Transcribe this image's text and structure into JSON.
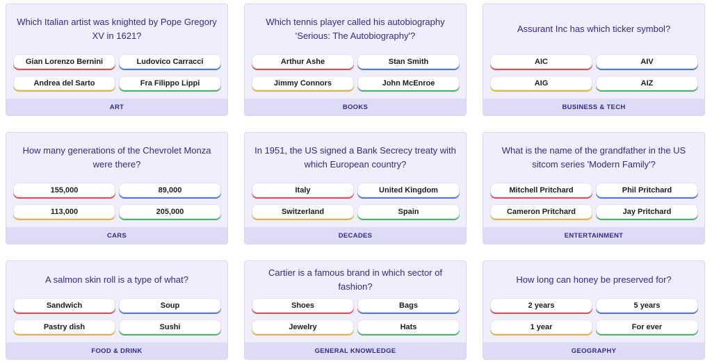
{
  "cards": [
    {
      "question": "Which Italian artist was knighted by Pope Gregory XV in 1621?",
      "answers": [
        "Gian Lorenzo Bernini",
        "Ludovico Carracci",
        "Andrea del Sarto",
        "Fra Filippo Lippi"
      ],
      "category": "ART"
    },
    {
      "question": "Which tennis player called his autobiography 'Serious: The Autobiography'?",
      "answers": [
        "Arthur Ashe",
        "Stan Smith",
        "Jimmy Connors",
        "John McEnroe"
      ],
      "category": "BOOKS"
    },
    {
      "question": "Assurant Inc has which ticker symbol?",
      "answers": [
        "AIC",
        "AIV",
        "AIG",
        "AIZ"
      ],
      "category": "BUSINESS & TECH"
    },
    {
      "question": "How many generations of the Chevrolet Monza were there?",
      "answers": [
        "155,000",
        "89,000",
        "113,000",
        "205,000"
      ],
      "category": "CARS"
    },
    {
      "question": "In 1951, the US signed a Bank Secrecy treaty with which European country?",
      "answers": [
        "Italy",
        "United Kingdom",
        "Switzerland",
        "Spain"
      ],
      "category": "DECADES"
    },
    {
      "question": "What is the name of the grandfather in the US sitcom series 'Modern Family'?",
      "answers": [
        "Mitchell Pritchard",
        "Phil Pritchard",
        "Cameron Pritchard",
        "Jay Pritchard"
      ],
      "category": "ENTERTAINMENT"
    },
    {
      "question": "A salmon skin roll is a type of what?",
      "answers": [
        "Sandwich",
        "Soup",
        "Pastry dish",
        "Sushi"
      ],
      "category": "FOOD & DRINK"
    },
    {
      "question": "Cartier is a famous brand in which sector of fashion?",
      "answers": [
        "Shoes",
        "Bags",
        "Jewelry",
        "Hats"
      ],
      "category": "GENERAL KNOWLEDGE"
    },
    {
      "question": "How long can honey be preserved for?",
      "answers": [
        "2 years",
        "5 years",
        "1 year",
        "For ever"
      ],
      "category": "GEOGRAPHY"
    }
  ]
}
